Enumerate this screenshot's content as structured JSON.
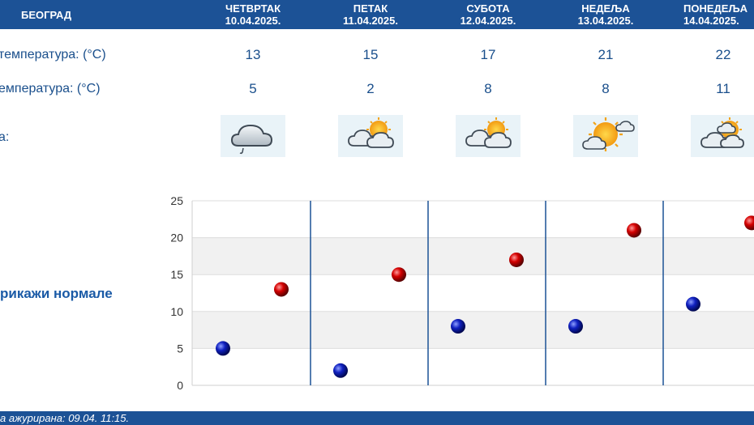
{
  "header": {
    "city": "БЕОГРАД"
  },
  "days": [
    {
      "name": "ЧЕТВРТАК",
      "date": "10.04.2025.",
      "max": "13",
      "min": "5",
      "icon": "cloud-rain-icon"
    },
    {
      "name": "ПЕТАК",
      "date": "11.04.2025.",
      "max": "15",
      "min": "2",
      "icon": "partly-cloudy-icon"
    },
    {
      "name": "СУБОТА",
      "date": "12.04.2025.",
      "max": "17",
      "min": "8",
      "icon": "partly-cloudy-icon"
    },
    {
      "name": "НЕДЕЉА",
      "date": "13.04.2025.",
      "max": "21",
      "min": "8",
      "icon": "sunny-cloud-icon"
    },
    {
      "name": "ПОНЕДЕЉА",
      "date": "14.04.2025.",
      "max": "22",
      "min": "11",
      "icon": "partly-cloudy-icon"
    }
  ],
  "rows": {
    "max_label": "температура: (°C)",
    "min_label": "емпература: (°C)",
    "weather_label": "а:"
  },
  "normals_link": "рикажи нормале",
  "footer": {
    "updated": "а ажурирана:  09.04.  11:15."
  },
  "colors": {
    "header": "#1c5296",
    "max_marker": "#cc0000",
    "min_marker": "#0a1fb0",
    "band": "#f1f1f1"
  },
  "chart_data": {
    "type": "scatter",
    "ylim": [
      0,
      25
    ],
    "yticks": [
      "0",
      "5",
      "10",
      "15",
      "20",
      "25"
    ],
    "series": [
      {
        "values": [
          13,
          15,
          17,
          21,
          22
        ]
      },
      {
        "values": [
          5,
          2,
          8,
          8,
          11
        ]
      }
    ]
  }
}
